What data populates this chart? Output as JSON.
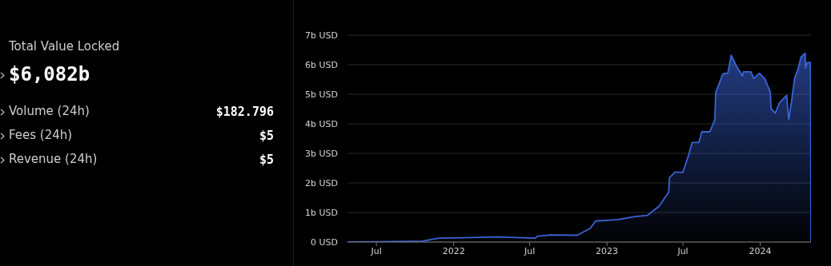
{
  "chart_data": [
    {
      "type": "other",
      "title": "Total Value Locked",
      "annotations": [
        "$6,082b",
        "Volume (24h)",
        "$182.796",
        "Fees (24h)",
        "$5",
        "Revenue (24h)",
        "$5"
      ]
    },
    {
      "type": "area",
      "x": [
        "2021-04-23",
        "2021-07-01",
        "2021-10-19",
        "2021-11-27",
        "2021-12-31",
        "2022-04-15",
        "2022-07-14",
        "2022-07-20",
        "2022-08-19",
        "2022-10-22",
        "2022-11-22",
        "2022-12-05",
        "2023-01-27",
        "2023-03-09",
        "2023-04-07",
        "2023-05-05",
        "2023-05-28",
        "2023-05-30",
        "2023-06-12",
        "2023-07-01",
        "2023-07-14",
        "2023-07-23",
        "2023-08-08",
        "2023-08-15",
        "2023-09-03",
        "2023-09-15",
        "2023-09-17",
        "2023-10-04",
        "2023-10-16",
        "2023-10-24",
        "2023-11-06",
        "2023-11-20",
        "2023-11-22",
        "2023-12-10",
        "2023-12-17",
        "2023-12-30",
        "2024-01-12",
        "2024-01-25",
        "2024-01-27",
        "2024-02-06",
        "2024-02-15",
        "2024-03-04",
        "2024-03-09",
        "2024-03-15",
        "2024-03-23",
        "2024-04-01",
        "2024-04-07",
        "2024-04-17",
        "2024-04-18",
        "2024-04-22",
        "2024-04-30",
        "2024-05-01"
      ],
      "series": [
        {
          "color": "#3a63d8",
          "values": [
            0,
            0.01,
            0.03,
            0.13,
            0.14,
            0.17,
            0.13,
            0.2,
            0.24,
            0.23,
            0.46,
            0.71,
            0.76,
            0.86,
            0.9,
            1.21,
            1.68,
            2.18,
            2.36,
            2.36,
            2.92,
            3.37,
            3.37,
            3.73,
            3.73,
            4.14,
            5.05,
            5.69,
            5.72,
            6.32,
            5.94,
            5.62,
            5.76,
            5.76,
            5.53,
            5.71,
            5.53,
            5.08,
            4.51,
            4.36,
            4.69,
            4.96,
            4.14,
            4.69,
            5.53,
            5.89,
            6.25,
            6.39,
            5.89,
            6.07,
            6.08,
            0
          ]
        }
      ],
      "xlim": [
        "2021-04-23",
        "2024-05-01"
      ],
      "xticks": [
        {
          "value": "2021-07-01",
          "label": "Jul"
        },
        {
          "value": "2022-01-01",
          "label": "2022"
        },
        {
          "value": "2022-07-01",
          "label": "Jul"
        },
        {
          "value": "2023-01-01",
          "label": "2023"
        },
        {
          "value": "2023-07-01",
          "label": "Jul"
        },
        {
          "value": "2024-01-01",
          "label": "2024"
        }
      ],
      "ylim": [
        0,
        7
      ],
      "yticks": [
        {
          "value": 0,
          "label": "0 USD"
        },
        {
          "value": 1,
          "label": "1b USD"
        },
        {
          "value": 2,
          "label": "2b USD"
        },
        {
          "value": 3,
          "label": "3b USD"
        },
        {
          "value": 4,
          "label": "4b USD"
        },
        {
          "value": 5,
          "label": "5b USD"
        },
        {
          "value": 6,
          "label": "6b USD"
        },
        {
          "value": 7,
          "label": "7b USD"
        }
      ],
      "grid": "y",
      "legend": false
    }
  ]
}
